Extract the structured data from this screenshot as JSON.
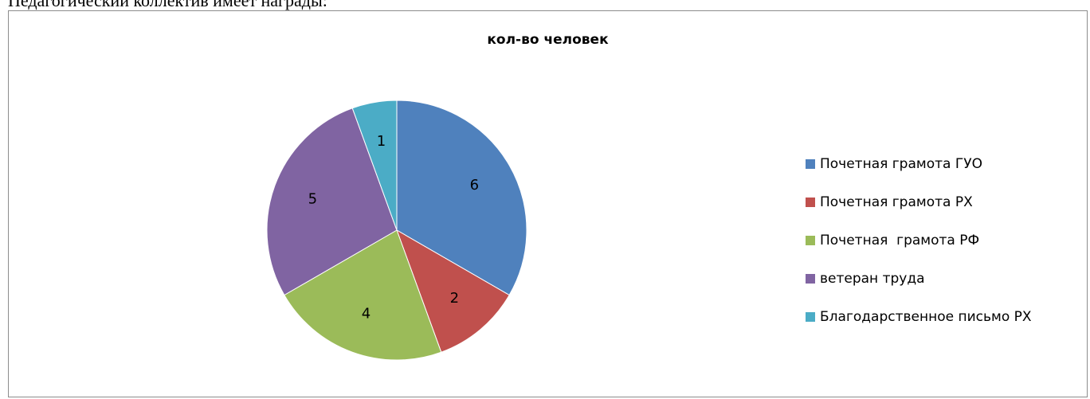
{
  "document": {
    "intro_text": "Педагогический коллектив имеет награды:"
  },
  "chart_data": {
    "type": "pie",
    "title": "кол-во человек",
    "legend_position": "right",
    "categories": [
      "Почетная грамота ГУО",
      "Почетная грамота РХ",
      "Почетная  грамота РФ",
      "ветеран труда",
      "Благодарственное письмо РХ"
    ],
    "values": [
      6,
      2,
      4,
      5,
      1
    ],
    "colors": [
      "#4f81bd",
      "#c0504d",
      "#9bbb59",
      "#8064a2",
      "#4bacc6"
    ],
    "data_labels": [
      "6",
      "2",
      "4",
      "5",
      "1"
    ]
  }
}
